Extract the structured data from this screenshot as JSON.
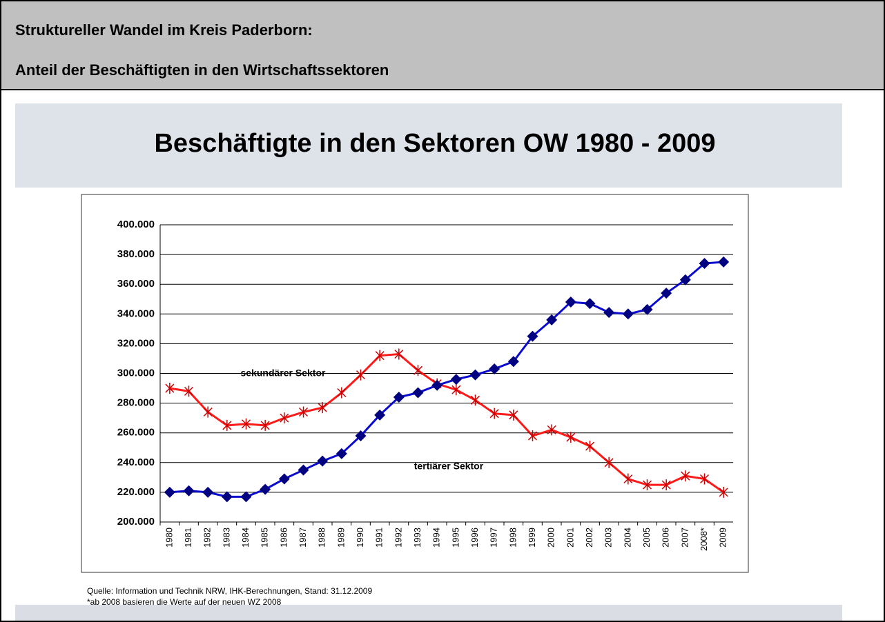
{
  "header": {
    "line1": "Struktureller Wandel im Kreis Paderborn:",
    "line2": "Anteil der Beschäftigten in den Wirtschaftssektoren"
  },
  "chart_data": {
    "type": "line",
    "title": "Beschäftigte in den Sektoren OW 1980 - 2009",
    "categories": [
      "1980",
      "1981",
      "1982",
      "1983",
      "1984",
      "1985",
      "1986",
      "1987",
      "1988",
      "1989",
      "1990",
      "1991",
      "1992",
      "1993",
      "1994",
      "1995",
      "1996",
      "1997",
      "1998",
      "1999",
      "2000",
      "2001",
      "2002",
      "2003",
      "2004",
      "2005",
      "2006",
      "2007",
      "2008*",
      "2009"
    ],
    "series": [
      {
        "name": "sekundärer Sektor",
        "color": "#ff1a1a",
        "marker": "asterisk",
        "values": [
          290000,
          288000,
          274000,
          265000,
          266000,
          265000,
          270000,
          274000,
          277000,
          287000,
          299000,
          312000,
          313000,
          302000,
          293000,
          289000,
          282000,
          273000,
          272000,
          258000,
          262000,
          257000,
          251000,
          240000,
          229000,
          225000,
          225000,
          231000,
          229000,
          220000
        ]
      },
      {
        "name": "tertiärer Sektor",
        "color": "#0a0ad0",
        "marker": "diamond",
        "values": [
          220000,
          221000,
          220000,
          217000,
          217000,
          222000,
          229000,
          235000,
          241000,
          246000,
          258000,
          272000,
          284000,
          287000,
          292000,
          296000,
          299000,
          303000,
          308000,
          325000,
          336000,
          348000,
          347000,
          341000,
          340000,
          343000,
          354000,
          363000,
          374000,
          375000
        ]
      }
    ],
    "ylim": [
      200000,
      400000
    ],
    "yticks": [
      {
        "value": 200000,
        "label": "200.000"
      },
      {
        "value": 220000,
        "label": "220.000"
      },
      {
        "value": 240000,
        "label": "240.000"
      },
      {
        "value": 260000,
        "label": "260.000"
      },
      {
        "value": 280000,
        "label": "280.000"
      },
      {
        "value": 300000,
        "label": "300.000"
      },
      {
        "value": 320000,
        "label": "320.000"
      },
      {
        "value": 340000,
        "label": "340.000"
      },
      {
        "value": 360000,
        "label": "360.000"
      },
      {
        "value": 380000,
        "label": "380.000"
      },
      {
        "value": 400000,
        "label": "400.000"
      }
    ],
    "grid": true,
    "notes": [
      "Quelle: Information und Technik NRW, IHK-Berechnungen, Stand: 31.12.2009",
      "*ab 2008 basieren die Werte auf der neuen WZ 2008"
    ]
  }
}
